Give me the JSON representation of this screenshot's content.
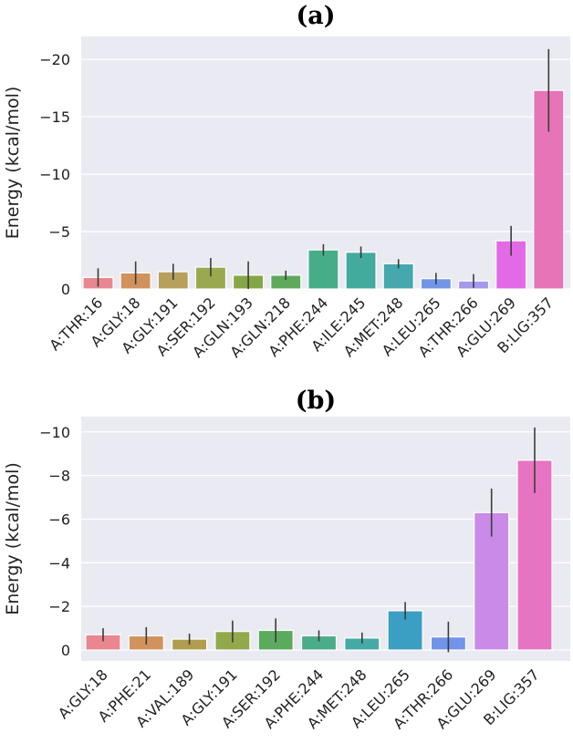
{
  "chart_data": [
    {
      "type": "bar",
      "title": "(a)",
      "xlabel": "",
      "ylabel": "Energy (kcal/mol)",
      "ylim": [
        0,
        -22
      ],
      "yticks": [
        "0",
        "−5",
        "−10",
        "−15",
        "−20"
      ],
      "ytick_values": [
        0,
        -5,
        -10,
        -15,
        -20
      ],
      "grid": true,
      "categories": [
        "A:THR:16",
        "A:GLY:18",
        "A:GLY:191",
        "A:SER:192",
        "A:GLN:193",
        "A:GLN:218",
        "A:PHE:244",
        "A:ILE:245",
        "A:MET:248",
        "A:LEU:265",
        "A:THR:266",
        "A:GLU:269",
        "B:LIG:357"
      ],
      "values": [
        -1.0,
        -1.4,
        -1.5,
        -1.9,
        -1.2,
        -1.2,
        -3.4,
        -3.2,
        -2.2,
        -0.9,
        -0.7,
        -4.2,
        -17.3
      ],
      "errors": [
        0.8,
        1.0,
        0.7,
        0.8,
        1.2,
        0.4,
        0.5,
        0.5,
        0.4,
        0.5,
        0.6,
        1.3,
        3.6
      ],
      "colors": [
        "#e8878f",
        "#d1925c",
        "#b6a05c",
        "#9aa84f",
        "#84a646",
        "#5daa5c",
        "#46ad88",
        "#43aa9e",
        "#44a8ad",
        "#7196e6",
        "#a499ea",
        "#e26ae6",
        "#e874b8"
      ]
    },
    {
      "type": "bar",
      "title": "(b)",
      "xlabel": "",
      "ylabel": "Energy (kcal/mol)",
      "ylim": [
        0.5,
        -10.7
      ],
      "yticks": [
        "0",
        "−2",
        "−4",
        "−6",
        "−8",
        "−10"
      ],
      "ytick_values": [
        0,
        -2,
        -4,
        -6,
        -8,
        -10
      ],
      "grid": true,
      "categories": [
        "A:GLY:18",
        "A:PHE:21",
        "A:VAL:189",
        "A:GLY:191",
        "A:SER:192",
        "A:PHE:244",
        "A:MET:248",
        "A:LEU:265",
        "A:THR:266",
        "A:GLU:269",
        "B:LIG:357"
      ],
      "values": [
        -0.7,
        -0.65,
        -0.5,
        -0.85,
        -0.9,
        -0.65,
        -0.55,
        -1.8,
        -0.6,
        -6.3,
        -8.7
      ],
      "errors": [
        0.3,
        0.4,
        0.25,
        0.5,
        0.55,
        0.25,
        0.25,
        0.4,
        0.7,
        1.1,
        1.5
      ],
      "colors": [
        "#e8878f",
        "#d2925c",
        "#b09e4e",
        "#91a84b",
        "#5caa5e",
        "#4aac88",
        "#45aaa5",
        "#3a9fc2",
        "#7193e8",
        "#c98ae8",
        "#e674c2"
      ]
    }
  ]
}
